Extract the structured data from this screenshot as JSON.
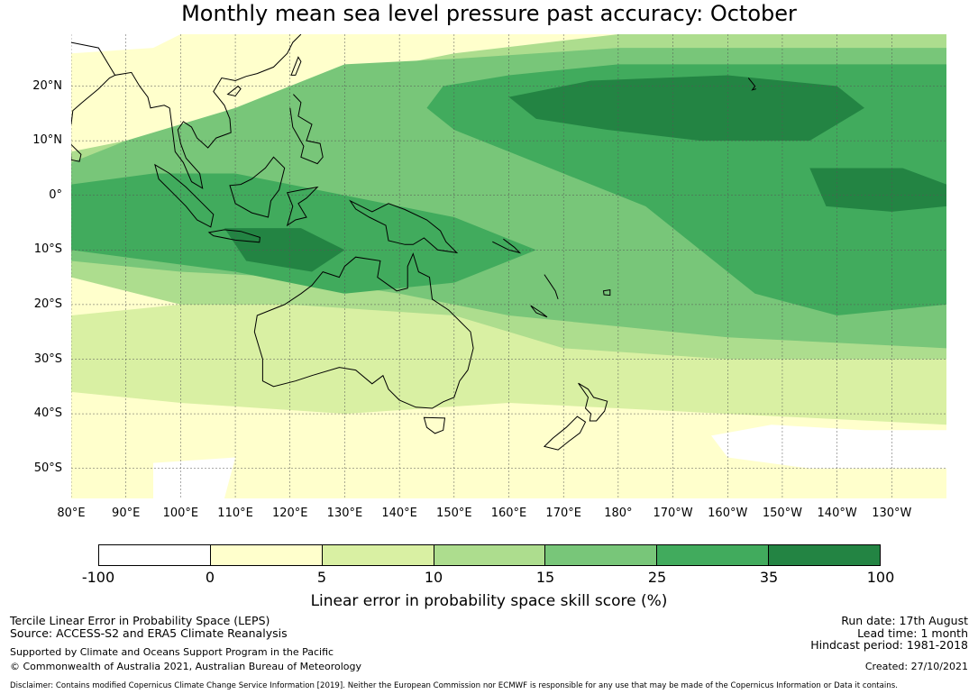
{
  "title": "Monthly mean sea level pressure past accuracy: October",
  "map": {
    "lat_labels": [
      "20°N",
      "10°N",
      "0°",
      "10°S",
      "20°S",
      "30°S",
      "40°S",
      "50°S"
    ],
    "lon_labels": [
      "80°E",
      "90°E",
      "100°E",
      "110°E",
      "120°E",
      "130°E",
      "140°E",
      "150°E",
      "160°E",
      "170°E",
      "180°",
      "170°W",
      "160°W",
      "150°W",
      "140°W",
      "130°W"
    ],
    "extent": {
      "lon_min": 80,
      "lon_max": 240,
      "lat_min": -55.5,
      "lat_max": 29.5
    },
    "colors": {
      "ocean_low": "#ffffcc",
      "white": "#ffffff",
      "coast": "#000000",
      "grid": "#555555"
    }
  },
  "legend": {
    "ticks": [
      "-100",
      "0",
      "5",
      "10",
      "15",
      "25",
      "35",
      "100"
    ],
    "colors": [
      "#ffffff",
      "#ffffcc",
      "#d9f0a3",
      "#addd8e",
      "#78c679",
      "#41ab5d",
      "#238443"
    ],
    "label": "Linear error in probability space skill score (%)"
  },
  "footer": {
    "left_line1": "Tercile Linear Error in Probability Space (LEPS)",
    "left_line2": "Source: ACCESS-S2 and ERA5 Climate Reanalysis",
    "left_line3": "Supported by Climate and Oceans Support Program in the Pacific",
    "left_line4": "© Commonwealth of Australia 2021, Australian Bureau of Meteorology",
    "right_line1": "Run date: 17th August",
    "right_line2": "Lead time: 1 month",
    "right_line3": "Hindcast period: 1981-2018",
    "right_line4": "Created: 27/10/2021",
    "disclaimer": "Disclaimer: Contains modified Copernicus Climate Change Service Information [2019]. Neither the European Commission nor ECMWF is responsible for any use that may be made of the Copernicus Information or Data it contains."
  }
}
